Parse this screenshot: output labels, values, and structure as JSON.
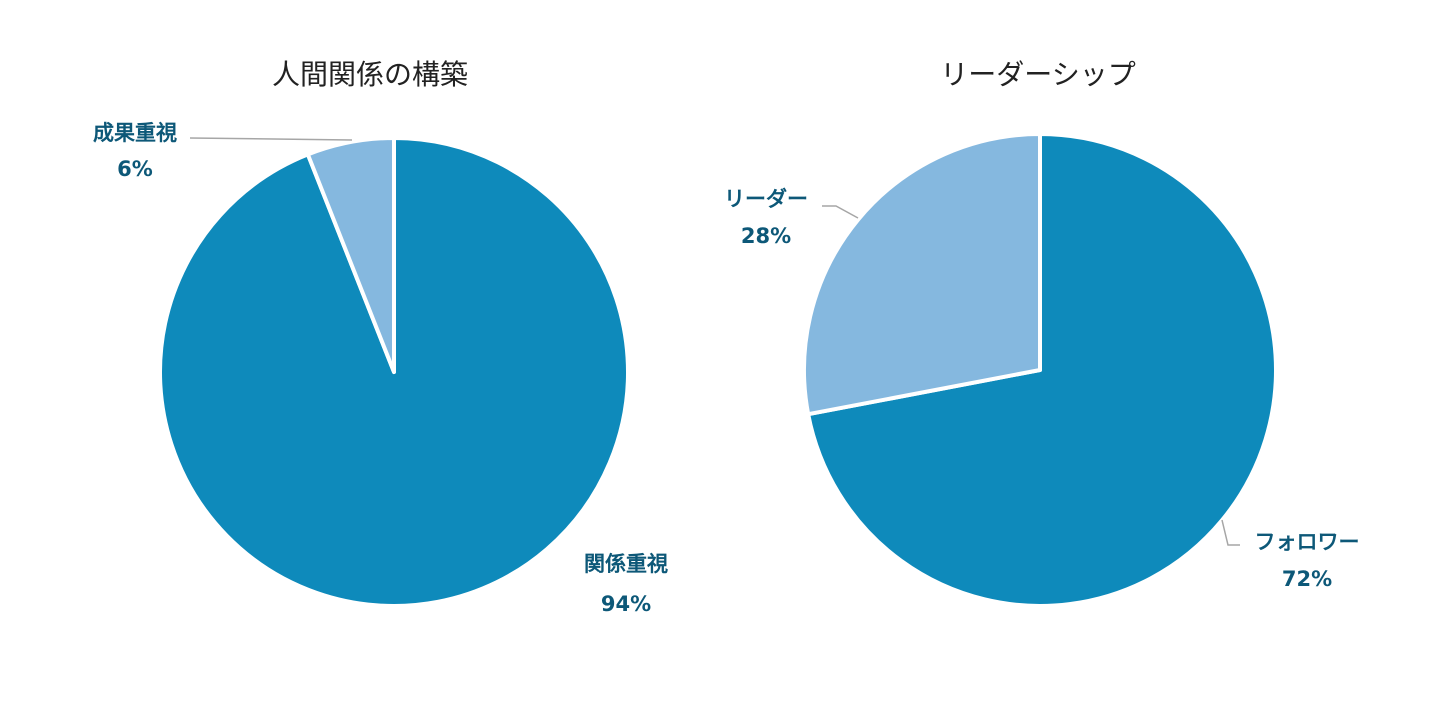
{
  "chart_data": [
    {
      "type": "pie",
      "title": "人間関係の構築",
      "labels": [
        "関係重視",
        "成果重視"
      ],
      "values": [
        94,
        6
      ],
      "value_labels": [
        "94%",
        "6%"
      ],
      "colors": [
        "#0e8abb",
        "#85b8df"
      ]
    },
    {
      "type": "pie",
      "title": "リーダーシップ",
      "labels": [
        "フォロワー",
        "リーダー"
      ],
      "values": [
        72,
        28
      ],
      "value_labels": [
        "72%",
        "28%"
      ],
      "colors": [
        "#0e8abb",
        "#85b8df"
      ]
    }
  ],
  "colors": {
    "label_text": "#0d5878",
    "title_text": "#222222"
  }
}
